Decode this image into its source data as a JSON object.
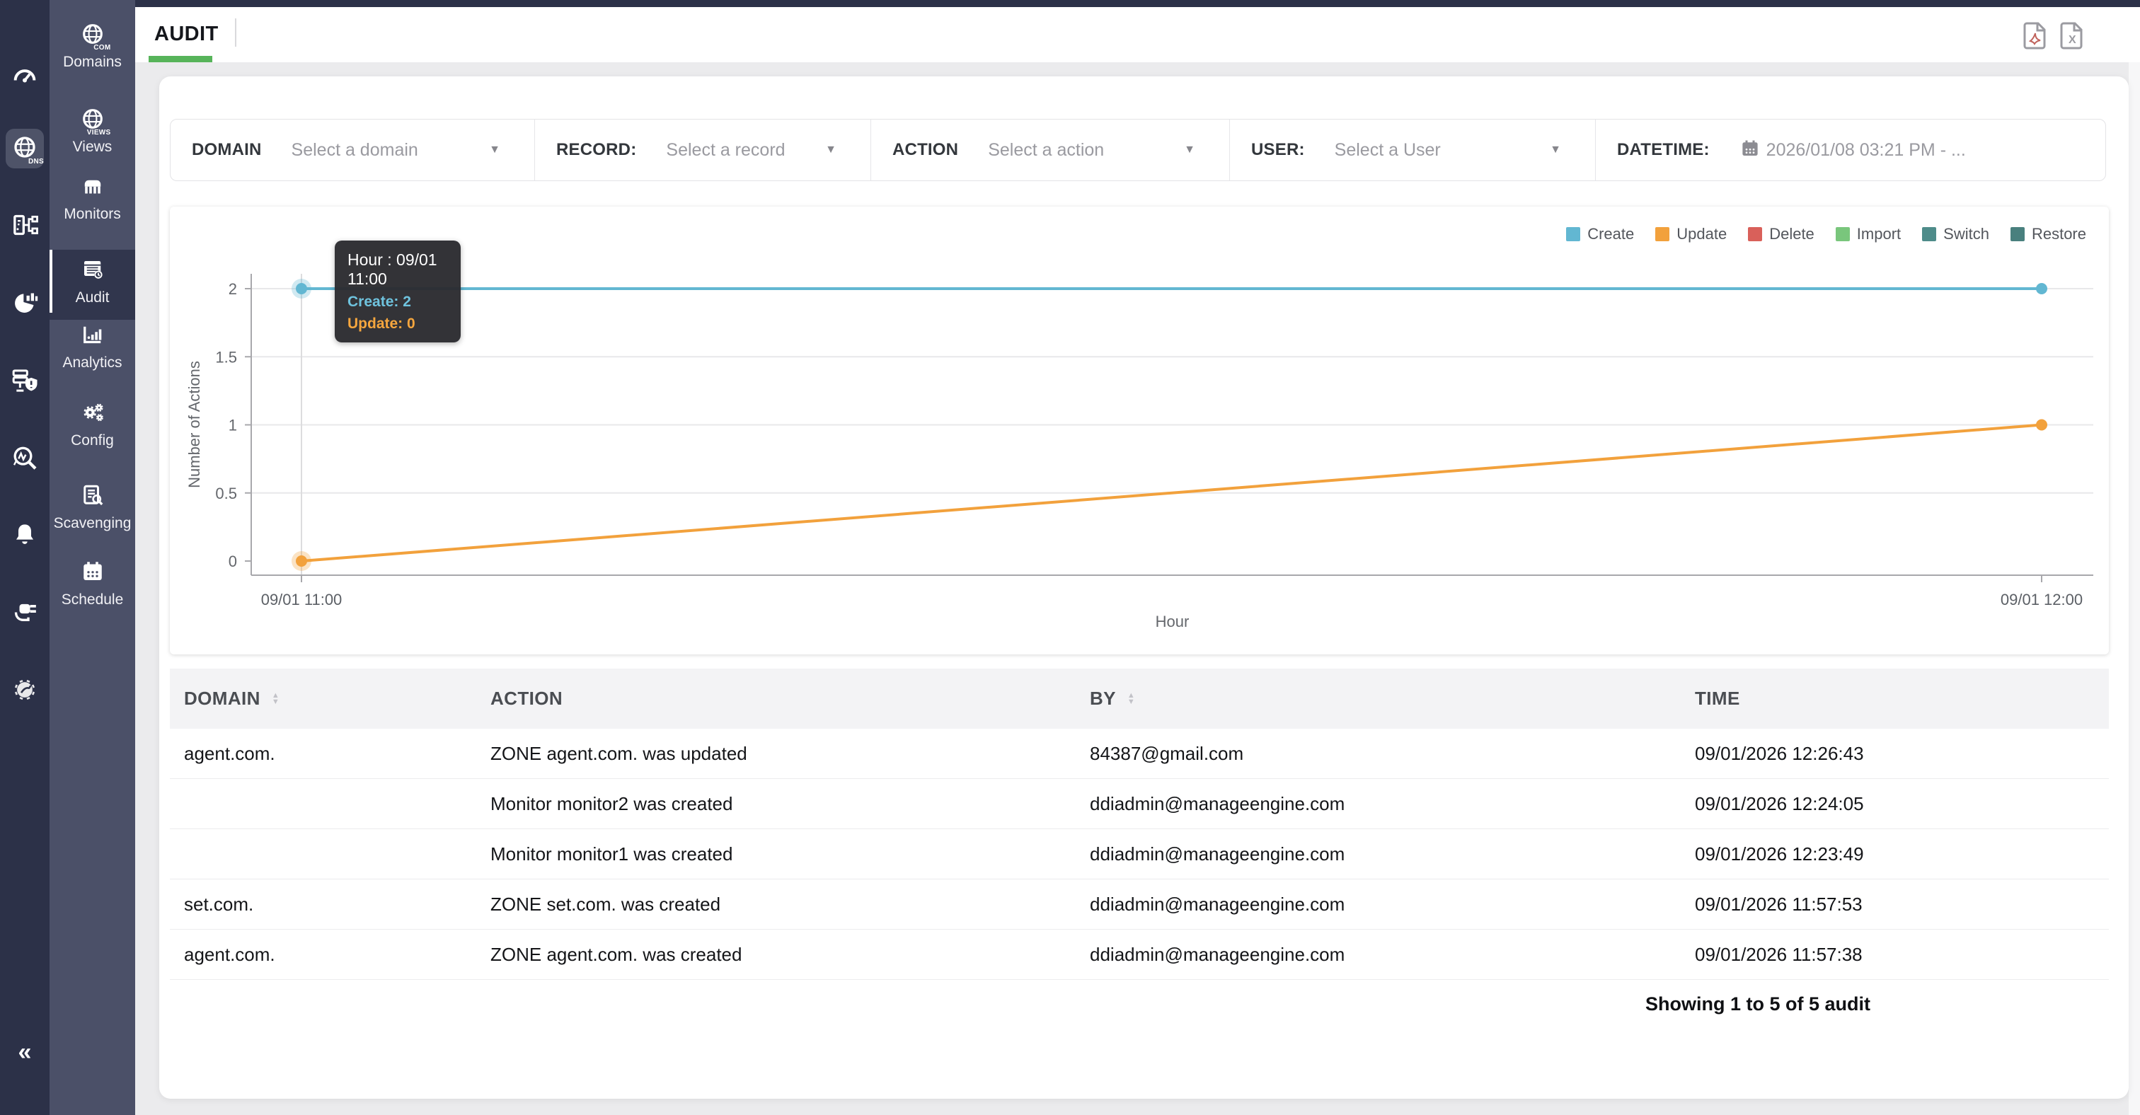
{
  "colors": {
    "rail_bg": "#2c3148",
    "menu_bg": "#4b5068",
    "menu_selected_bg": "#31364d",
    "tab_accent_green": "#57b45a",
    "page_bg": "#ebebed",
    "create": "#62b7d2",
    "update": "#f2a13c",
    "delete": "#d9605a",
    "import": "#79c67c",
    "switch": "#4e8c8a",
    "restore": "#49807e"
  },
  "header": {
    "tab": "AUDIT",
    "export_icons": [
      {
        "name": "export-pdf-icon"
      },
      {
        "name": "export-excel-icon",
        "glyph": "X"
      }
    ]
  },
  "sidebar": {
    "rail": [
      {
        "icon": "dashboard-gauge-icon"
      },
      {
        "icon": "dns-globe-icon",
        "caption": "DNS",
        "active": true
      },
      {
        "icon": "topology-icon"
      },
      {
        "icon": "pie-analytics-icon"
      },
      {
        "icon": "server-shield-icon"
      },
      {
        "icon": "search-analyze-icon"
      },
      {
        "icon": "bell-icon"
      },
      {
        "icon": "plug-icon"
      },
      {
        "icon": "gear-wrench-icon"
      }
    ],
    "collapse_glyph": "«",
    "menu": [
      {
        "label": "Domains",
        "icon": "domains-globe-icon",
        "caption": "COM",
        "selected": false
      },
      {
        "label": "Views",
        "icon": "views-globe-icon",
        "caption": "VIEWS",
        "selected": false
      },
      {
        "label": "Monitors",
        "icon": "monitors-icon",
        "selected": false
      },
      {
        "label": "Audit",
        "icon": "audit-log-icon",
        "selected": true
      },
      {
        "label": "Analytics",
        "icon": "analytics-bars-icon",
        "selected": false
      },
      {
        "label": "Config",
        "icon": "config-gears-icon",
        "selected": false
      },
      {
        "label": "Scavenging",
        "icon": "scavenging-doc-search-icon",
        "selected": false
      },
      {
        "label": "Schedule",
        "icon": "schedule-calendar-icon",
        "selected": false
      }
    ]
  },
  "filters": [
    {
      "label": "DOMAIN",
      "value": "Select a domain",
      "caret": true,
      "placeholder": true
    },
    {
      "label": "RECORD:",
      "value": "Select a record",
      "caret": true,
      "placeholder": true
    },
    {
      "label": "ACTION",
      "value": "Select a action",
      "caret": true,
      "placeholder": true
    },
    {
      "label": "USER:",
      "value": "Select a User",
      "caret": true,
      "placeholder": true
    },
    {
      "label": "DATETIME:",
      "value": "2026/01/08 03:21 PM - ...",
      "caret": false,
      "calendar_icon": true,
      "placeholder": true
    }
  ],
  "chart_data": {
    "type": "line",
    "x": [
      "09/01 11:00",
      "09/01 12:00"
    ],
    "series": [
      {
        "name": "Create",
        "color": "#62b7d2",
        "values": [
          2,
          2
        ]
      },
      {
        "name": "Update",
        "color": "#f2a13c",
        "values": [
          0,
          1
        ]
      },
      {
        "name": "Delete",
        "color": "#d9605a",
        "values": []
      },
      {
        "name": "Import",
        "color": "#79c67c",
        "values": []
      },
      {
        "name": "Switch",
        "color": "#4e8c8a",
        "values": []
      },
      {
        "name": "Restore",
        "color": "#49807e",
        "values": []
      }
    ],
    "legend": [
      "Create",
      "Update",
      "Delete",
      "Import",
      "Switch",
      "Restore"
    ],
    "legend_position": "top-right",
    "xlabel": "Hour",
    "ylabel": "Number of Actions",
    "yticks": [
      0,
      0.5,
      1,
      1.5,
      2
    ],
    "ylim": [
      0,
      2
    ],
    "grid": true
  },
  "chart_tooltip": {
    "title": "Hour : 09/01 11:00",
    "rows": [
      {
        "name": "Create",
        "value": "2",
        "color": "#6fc3de"
      },
      {
        "name": "Update",
        "value": "0",
        "color": "#f5a63e"
      }
    ]
  },
  "table": {
    "columns": [
      {
        "label": "DOMAIN",
        "sortable": true
      },
      {
        "label": "ACTION",
        "sortable": false
      },
      {
        "label": "BY",
        "sortable": true
      },
      {
        "label": "TIME",
        "sortable": false
      }
    ],
    "rows": [
      {
        "domain": "agent.com.",
        "action": "ZONE agent.com. was updated",
        "by": "84387@gmail.com",
        "time": "09/01/2026 12:26:43"
      },
      {
        "domain": "",
        "action": "Monitor monitor2 was created",
        "by": "ddiadmin@manageengine.com",
        "time": "09/01/2026 12:24:05"
      },
      {
        "domain": "",
        "action": "Monitor monitor1 was created",
        "by": "ddiadmin@manageengine.com",
        "time": "09/01/2026 12:23:49"
      },
      {
        "domain": "set.com.",
        "action": "ZONE set.com. was created",
        "by": "ddiadmin@manageengine.com",
        "time": "09/01/2026 11:57:53"
      },
      {
        "domain": "agent.com.",
        "action": "ZONE agent.com. was created",
        "by": "ddiadmin@manageengine.com",
        "time": "09/01/2026 11:57:38"
      }
    ],
    "footer": "Showing 1 to 5 of 5 audit"
  }
}
